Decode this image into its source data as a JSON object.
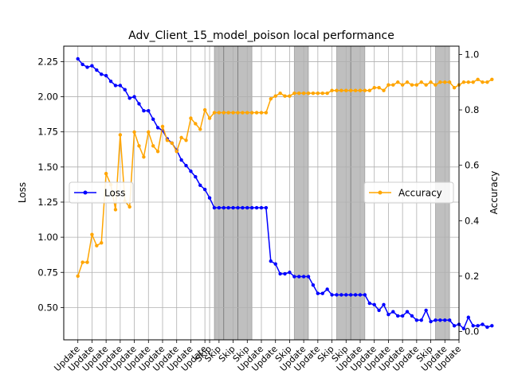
{
  "chart_data": {
    "type": "line",
    "title": "Adv_Client_15_model_poison local performance",
    "ylabel_left": "Loss",
    "ylabel_right": "Accuracy",
    "ylim_left": [
      0.27,
      2.36
    ],
    "ylim_right": [
      -0.03,
      1.03
    ],
    "yticks_left": [
      "0.50",
      "0.75",
      "1.00",
      "1.25",
      "1.50",
      "1.75",
      "2.00",
      "2.25"
    ],
    "yticks_right": [
      "0.0",
      "0.2",
      "0.4",
      "0.6",
      "0.8",
      "1.0"
    ],
    "x_range": [
      -3,
      81
    ],
    "grid": true,
    "x_tick_labels": [
      {
        "x": 0,
        "label": "Update"
      },
      {
        "x": 3,
        "label": "Update"
      },
      {
        "x": 6,
        "label": "Update"
      },
      {
        "x": 9,
        "label": "Update"
      },
      {
        "x": 12,
        "label": "Update"
      },
      {
        "x": 15,
        "label": "Update"
      },
      {
        "x": 18,
        "label": "Update"
      },
      {
        "x": 21,
        "label": "Update"
      },
      {
        "x": 24,
        "label": "Update"
      },
      {
        "x": 27,
        "label": "Update"
      },
      {
        "x": 28,
        "label": "Skip"
      },
      {
        "x": 30,
        "label": "Skip"
      },
      {
        "x": 33,
        "label": "Skip"
      },
      {
        "x": 36,
        "label": "Skip"
      },
      {
        "x": 39,
        "label": "Update"
      },
      {
        "x": 42,
        "label": "Update"
      },
      {
        "x": 45,
        "label": "Skip"
      },
      {
        "x": 48,
        "label": "Update"
      },
      {
        "x": 51,
        "label": "Update"
      },
      {
        "x": 54,
        "label": "Skip"
      },
      {
        "x": 57,
        "label": "Skip"
      },
      {
        "x": 60,
        "label": "Update"
      },
      {
        "x": 63,
        "label": "Update"
      },
      {
        "x": 66,
        "label": "Update"
      },
      {
        "x": 69,
        "label": "Update"
      },
      {
        "x": 72,
        "label": "Update"
      },
      {
        "x": 75,
        "label": "Skip"
      },
      {
        "x": 78,
        "label": "Update"
      },
      {
        "x": 81,
        "label": "Update"
      }
    ],
    "skip_regions": [
      [
        29,
        31
      ],
      [
        31,
        34
      ],
      [
        34,
        37
      ],
      [
        46,
        49
      ],
      [
        55,
        58
      ],
      [
        58,
        61
      ],
      [
        76,
        79
      ]
    ],
    "series": [
      {
        "name": "Loss",
        "axis": "left",
        "color": "#0000ff",
        "values": [
          2.27,
          2.23,
          2.21,
          2.22,
          2.19,
          2.16,
          2.15,
          2.11,
          2.08,
          2.08,
          2.05,
          1.99,
          2.0,
          1.95,
          1.9,
          1.9,
          1.84,
          1.78,
          1.76,
          1.7,
          1.67,
          1.62,
          1.55,
          1.51,
          1.47,
          1.43,
          1.37,
          1.34,
          1.28,
          1.21,
          1.21,
          1.21,
          1.21,
          1.21,
          1.21,
          1.21,
          1.21,
          1.21,
          1.21,
          1.21,
          1.21,
          0.83,
          0.81,
          0.74,
          0.74,
          0.75,
          0.72,
          0.72,
          0.72,
          0.72,
          0.66,
          0.6,
          0.6,
          0.63,
          0.59,
          0.59,
          0.59,
          0.59,
          0.59,
          0.59,
          0.59,
          0.59,
          0.53,
          0.52,
          0.48,
          0.52,
          0.45,
          0.47,
          0.44,
          0.44,
          0.47,
          0.44,
          0.41,
          0.41,
          0.48,
          0.4,
          0.41,
          0.41,
          0.41,
          0.41,
          0.37,
          0.38,
          0.35,
          0.43,
          0.37,
          0.37,
          0.38,
          0.36,
          0.37
        ]
      },
      {
        "name": "Accuracy",
        "axis": "right",
        "color": "#ffa500",
        "values": [
          0.2,
          0.25,
          0.25,
          0.35,
          0.31,
          0.32,
          0.57,
          0.53,
          0.44,
          0.71,
          0.47,
          0.45,
          0.72,
          0.67,
          0.63,
          0.72,
          0.67,
          0.65,
          0.74,
          0.69,
          0.68,
          0.65,
          0.7,
          0.69,
          0.77,
          0.75,
          0.73,
          0.8,
          0.77,
          0.79,
          0.79,
          0.79,
          0.79,
          0.79,
          0.79,
          0.79,
          0.79,
          0.79,
          0.79,
          0.79,
          0.79,
          0.84,
          0.85,
          0.86,
          0.85,
          0.85,
          0.86,
          0.86,
          0.86,
          0.86,
          0.86,
          0.86,
          0.86,
          0.86,
          0.87,
          0.87,
          0.87,
          0.87,
          0.87,
          0.87,
          0.87,
          0.87,
          0.87,
          0.88,
          0.88,
          0.87,
          0.89,
          0.89,
          0.9,
          0.89,
          0.9,
          0.89,
          0.89,
          0.9,
          0.89,
          0.9,
          0.89,
          0.9,
          0.9,
          0.9,
          0.88,
          0.89,
          0.9,
          0.9,
          0.9,
          0.91,
          0.9,
          0.9,
          0.91
        ]
      }
    ],
    "legend": {
      "loss_position": "center-left",
      "accuracy_position": "center-right"
    }
  }
}
